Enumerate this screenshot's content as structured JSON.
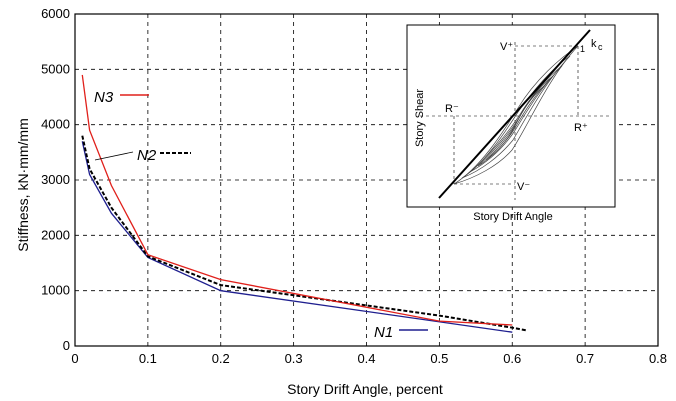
{
  "chart_data": {
    "type": "line",
    "xlabel": "Story Drift Angle, percent",
    "ylabel": "Stiffness, kN·mm/mm",
    "xlim": [
      0,
      0.8
    ],
    "ylim": [
      0,
      6000
    ],
    "xticks": [
      "0",
      "0.1",
      "0.2",
      "0.3",
      "0.4",
      "0.5",
      "0.6",
      "0.7",
      "0.8"
    ],
    "yticks": [
      "0",
      "1000",
      "2000",
      "3000",
      "4000",
      "5000",
      "6000"
    ],
    "grid": "dashed",
    "series": [
      {
        "name": "N1",
        "color": "#1f1f8f",
        "style": "solid",
        "x": [
          0.01,
          0.02,
          0.05,
          0.1,
          0.2,
          0.6
        ],
        "y": [
          3700,
          3100,
          2400,
          1600,
          1000,
          250
        ]
      },
      {
        "name": "N2",
        "color": "#000000",
        "style": "dashed",
        "x": [
          0.01,
          0.02,
          0.05,
          0.1,
          0.2,
          0.5,
          0.6,
          0.62
        ],
        "y": [
          3800,
          3200,
          2500,
          1620,
          1100,
          550,
          330,
          280
        ]
      },
      {
        "name": "N3",
        "color": "#e0201b",
        "style": "solid",
        "x": [
          0.01,
          0.02,
          0.05,
          0.1,
          0.2,
          0.5,
          0.6
        ],
        "y": [
          4900,
          3900,
          2900,
          1650,
          1200,
          450,
          380
        ]
      }
    ],
    "legend": {
      "N3": "N3",
      "N2": "N2",
      "N1": "N1"
    },
    "inset": {
      "xlabel": "Story Drift Angle",
      "ylabel": "Story Shear",
      "labels": {
        "v_plus": "V⁺",
        "v_minus": "V⁻",
        "r_plus": "R⁺",
        "r_minus": "R⁻",
        "kc": "k",
        "kc_sub": "c",
        "one": "1"
      }
    }
  }
}
